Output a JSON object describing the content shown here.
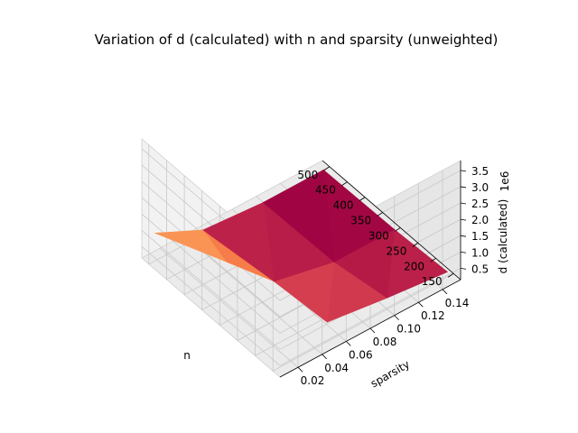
{
  "chart_data": {
    "type": "surface3d",
    "title": "Variation of d (calculated) with n and sparsity (unweighted)",
    "xlabel": "n",
    "ylabel": "sparsity",
    "zlabel": "d (calculated)",
    "z_offset_label": "1e6",
    "x_ticks": [
      "150",
      "200",
      "250",
      "300",
      "350",
      "400",
      "450",
      "500"
    ],
    "y_ticks": [
      "0.02",
      "0.04",
      "0.06",
      "0.08",
      "0.10",
      "0.12",
      "0.14"
    ],
    "z_ticks": [
      "0.5",
      "1.0",
      "1.5",
      "2.0",
      "2.5",
      "3.0",
      "3.5"
    ],
    "xlim": [
      130,
      520
    ],
    "ylim": [
      0.005,
      0.155
    ],
    "zlim": [
      0.15,
      3.8
    ],
    "grid": true,
    "colormap": "Spectral",
    "n_values": [
      150,
      300,
      500
    ],
    "sparsity_values": [
      0.01,
      0.05,
      0.1,
      0.15
    ],
    "d_values_1e6": [
      [
        3.8,
        0.75,
        0.5,
        0.3
      ],
      [
        2.0,
        0.6,
        0.2,
        0.2
      ],
      [
        1.0,
        0.3,
        0.15,
        0.15
      ]
    ]
  }
}
